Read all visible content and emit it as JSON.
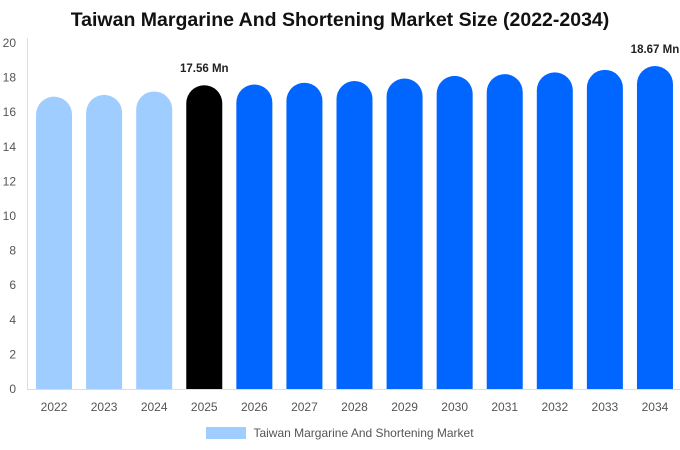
{
  "chart_data": {
    "type": "bar",
    "title": "Taiwan Margarine And Shortening Market Size (2022-2034)",
    "xlabel": "",
    "ylabel": "",
    "categories": [
      "2022",
      "2023",
      "2024",
      "2025",
      "2026",
      "2027",
      "2028",
      "2029",
      "2030",
      "2031",
      "2032",
      "2033",
      "2034"
    ],
    "series": [
      {
        "name": "Taiwan Margarine And Shortening Market",
        "values": [
          16.9,
          17.0,
          17.2,
          17.56,
          17.6,
          17.7,
          17.8,
          17.95,
          18.1,
          18.2,
          18.3,
          18.45,
          18.67
        ]
      }
    ],
    "ylim": [
      0,
      20
    ],
    "yticks": [
      0,
      2,
      4,
      6,
      8,
      10,
      12,
      14,
      16,
      18,
      20
    ],
    "grid": false,
    "legend": "bottom",
    "bar_colors": [
      "#a0cdff",
      "#a0cdff",
      "#a0cdff",
      "#000000",
      "#0066ff",
      "#0066ff",
      "#0066ff",
      "#0066ff",
      "#0066ff",
      "#0066ff",
      "#0066ff",
      "#0066ff",
      "#0066ff"
    ],
    "data_labels": [
      {
        "category": "2025",
        "text": "17.56 Mn"
      },
      {
        "category": "2034",
        "text": "18.67 Mn"
      }
    ]
  }
}
